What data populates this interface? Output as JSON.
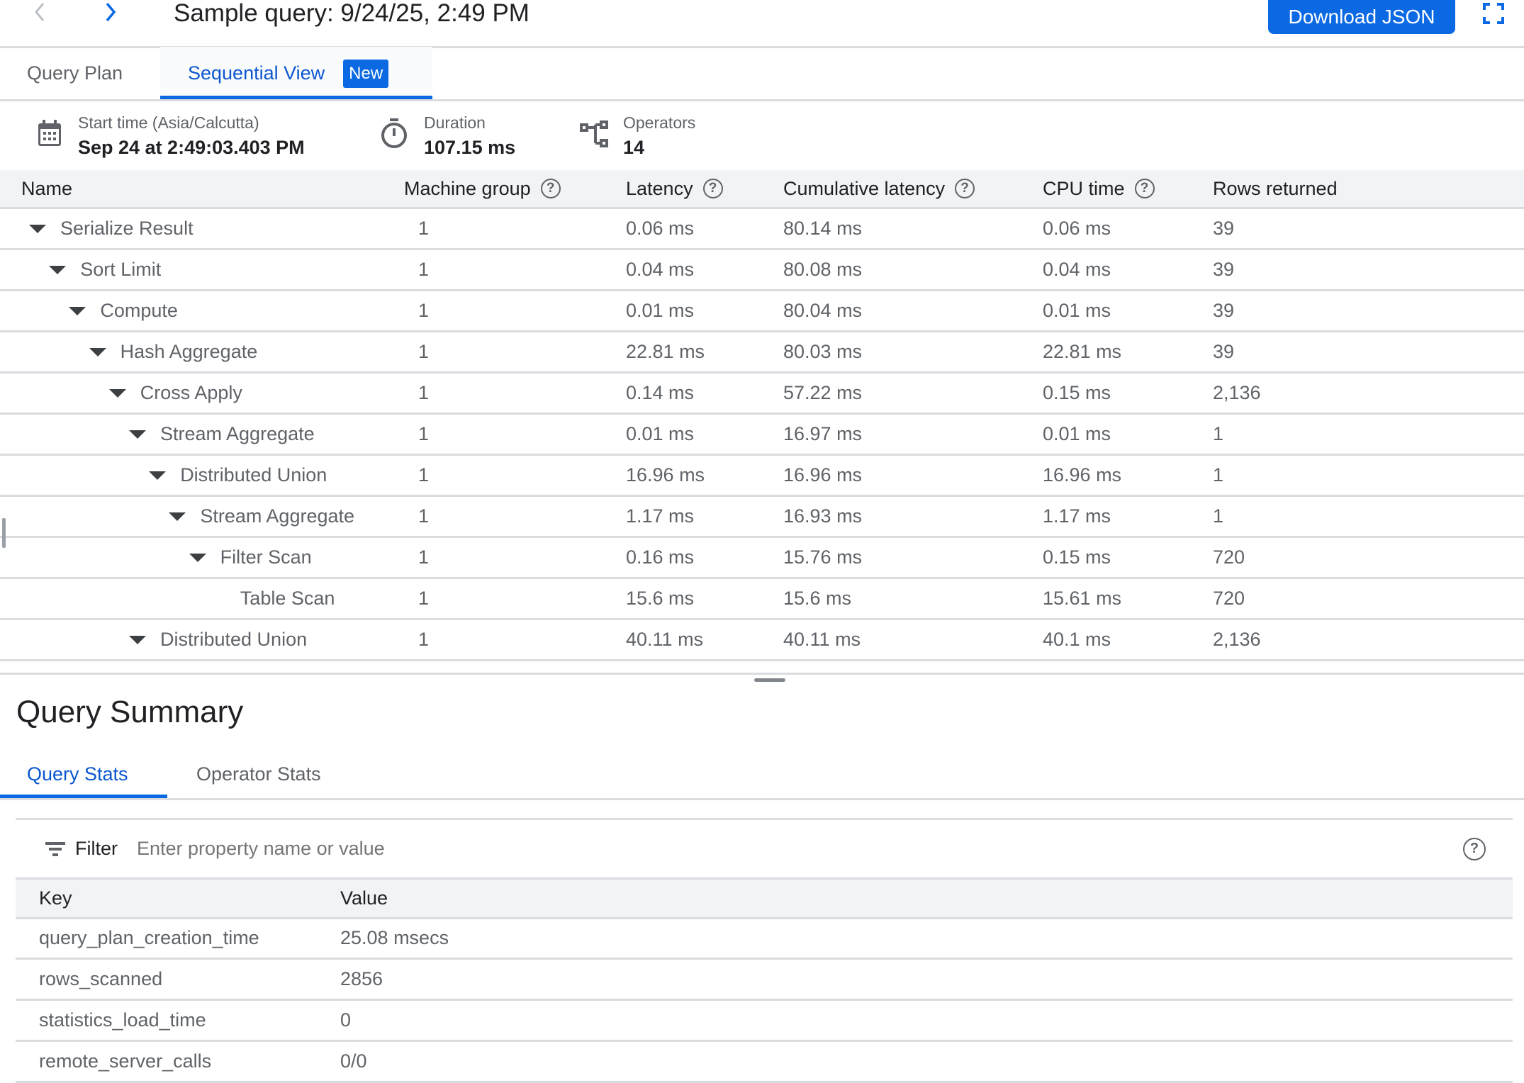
{
  "header": {
    "title": "Sample query: 9/24/25, 2:49 PM",
    "download_label": "Download JSON"
  },
  "tabs": [
    {
      "label": "Query Plan"
    },
    {
      "label": "Sequential View",
      "badge": "New",
      "active": true
    }
  ],
  "info": {
    "start_label": "Start time (Asia/Calcutta)",
    "start_value": "Sep 24 at 2:49:03.403 PM",
    "duration_label": "Duration",
    "duration_value": "107.15 ms",
    "operators_label": "Operators",
    "operators_value": "14"
  },
  "table": {
    "columns": [
      "Name",
      "Machine group",
      "Latency",
      "Cumulative latency",
      "CPU time",
      "Rows returned"
    ],
    "rows": [
      {
        "name": "Serialize Result",
        "level": 0,
        "expandable": true,
        "machine_group": "1",
        "latency": "0.06 ms",
        "cumulative": "80.14 ms",
        "cpu": "0.06 ms",
        "rows": "39"
      },
      {
        "name": "Sort Limit",
        "level": 1,
        "expandable": true,
        "machine_group": "1",
        "latency": "0.04 ms",
        "cumulative": "80.08 ms",
        "cpu": "0.04 ms",
        "rows": "39"
      },
      {
        "name": "Compute",
        "level": 2,
        "expandable": true,
        "machine_group": "1",
        "latency": "0.01 ms",
        "cumulative": "80.04 ms",
        "cpu": "0.01 ms",
        "rows": "39"
      },
      {
        "name": "Hash Aggregate",
        "level": 3,
        "expandable": true,
        "machine_group": "1",
        "latency": "22.81 ms",
        "cumulative": "80.03 ms",
        "cpu": "22.81 ms",
        "rows": "39"
      },
      {
        "name": "Cross Apply",
        "level": 4,
        "expandable": true,
        "machine_group": "1",
        "latency": "0.14 ms",
        "cumulative": "57.22 ms",
        "cpu": "0.15 ms",
        "rows": "2,136"
      },
      {
        "name": "Stream Aggregate",
        "level": 5,
        "expandable": true,
        "machine_group": "1",
        "latency": "0.01 ms",
        "cumulative": "16.97 ms",
        "cpu": "0.01 ms",
        "rows": "1"
      },
      {
        "name": "Distributed Union",
        "level": 6,
        "expandable": true,
        "machine_group": "1",
        "latency": "16.96 ms",
        "cumulative": "16.96 ms",
        "cpu": "16.96 ms",
        "rows": "1"
      },
      {
        "name": "Stream Aggregate",
        "level": 7,
        "expandable": true,
        "machine_group": "1",
        "latency": "1.17 ms",
        "cumulative": "16.93 ms",
        "cpu": "1.17 ms",
        "rows": "1"
      },
      {
        "name": "Filter Scan",
        "level": 8,
        "expandable": true,
        "machine_group": "1",
        "latency": "0.16 ms",
        "cumulative": "15.76 ms",
        "cpu": "0.15 ms",
        "rows": "720"
      },
      {
        "name": "Table Scan",
        "level": 9,
        "expandable": false,
        "machine_group": "1",
        "latency": "15.6 ms",
        "cumulative": "15.6 ms",
        "cpu": "15.61 ms",
        "rows": "720"
      },
      {
        "name": "Distributed Union",
        "level": 5,
        "expandable": true,
        "machine_group": "1",
        "latency": "40.11 ms",
        "cumulative": "40.11 ms",
        "cpu": "40.1 ms",
        "rows": "2,136"
      }
    ]
  },
  "summary": {
    "title": "Query Summary",
    "tabs": [
      {
        "label": "Query Stats",
        "active": true
      },
      {
        "label": "Operator Stats"
      }
    ],
    "filter_label": "Filter",
    "filter_placeholder": "Enter property name or value",
    "columns": [
      "Key",
      "Value"
    ],
    "rows": [
      {
        "key": "query_plan_creation_time",
        "value": "25.08 msecs"
      },
      {
        "key": "rows_scanned",
        "value": "2856"
      },
      {
        "key": "statistics_load_time",
        "value": "0"
      },
      {
        "key": "remote_server_calls",
        "value": "0/0"
      }
    ]
  },
  "colors": {
    "accent": "#0b69e3",
    "header_bg": "#f1f3f4",
    "divider": "#dadce0"
  }
}
